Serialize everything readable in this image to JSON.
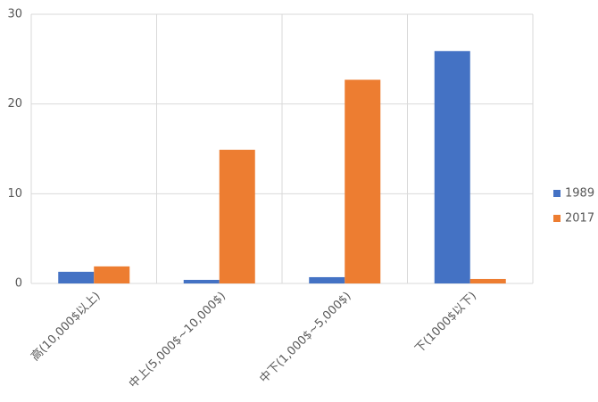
{
  "chart_data": {
    "type": "bar",
    "categories": [
      "高(10,000$以上)",
      "中上(5,000$~10,000$)",
      "中下(1,000$~5,000$)",
      "下(1000$以下)"
    ],
    "series": [
      {
        "name": "1989",
        "color": "#4472c4",
        "values": [
          1.3,
          0.4,
          0.7,
          25.9
        ]
      },
      {
        "name": "2017",
        "color": "#ed7d31",
        "values": [
          1.9,
          14.9,
          22.7,
          0.5
        ]
      }
    ],
    "ylim": [
      0,
      30
    ],
    "yticks": [
      0,
      10,
      20,
      30
    ],
    "grid": true,
    "legend": "right"
  }
}
